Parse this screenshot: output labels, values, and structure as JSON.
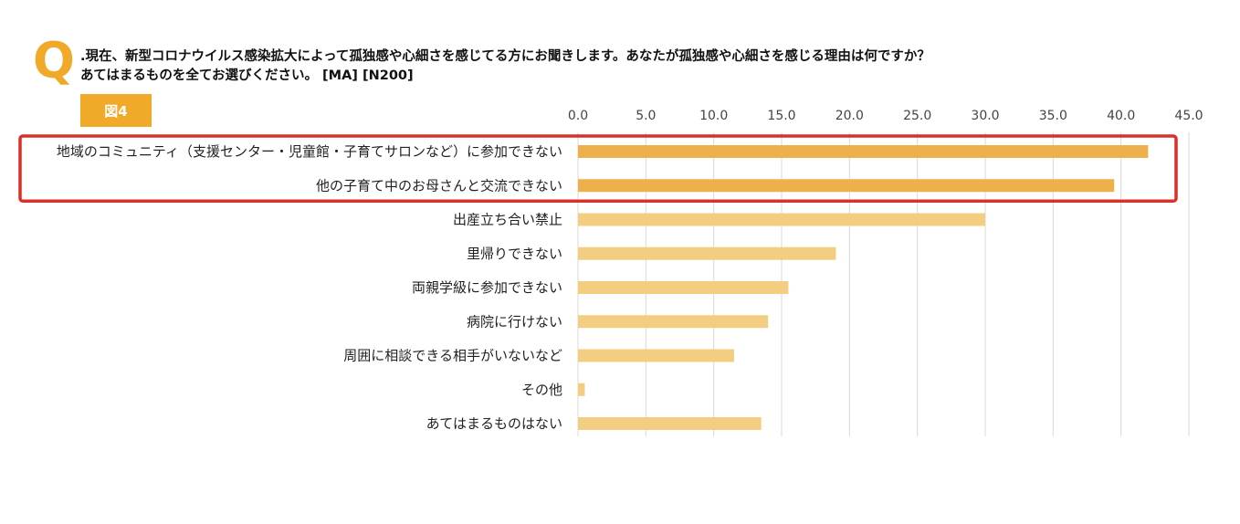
{
  "header": {
    "q_mark": "Q",
    "question_line1": ".現在、新型コロナウイルス感染拡大によって孤独感や心細さを感じてる方にお聞きします。あなたが孤独感や心細さを感じる理由は何ですか？",
    "question_line2": "あてはまるものを全てお選びください。 [MA] [N200]",
    "figure_label": "図4"
  },
  "colors": {
    "accent": "#f0a928",
    "bar_highlight": "#edb04a",
    "bar_normal": "#f3cd80",
    "highlight_box": "#d9302a",
    "grid": "#d9d9d9"
  },
  "chart_data": {
    "type": "bar",
    "orientation": "horizontal",
    "categories": [
      "地域のコミュニティ（支援センター・児童館・子育てサロンなど）に参加できない",
      "他の子育て中のお母さんと交流できない",
      "出産立ち合い禁止",
      "里帰りできない",
      "両親学級に参加できない",
      "病院に行けない",
      "周囲に相談できる相手がいないなど",
      "その他",
      "あてはまるものはない"
    ],
    "values": [
      42.0,
      39.5,
      30.0,
      19.0,
      15.5,
      14.0,
      11.5,
      0.5,
      13.5
    ],
    "highlighted": [
      0,
      1
    ],
    "xlim": [
      0,
      45
    ],
    "ticks": [
      "0.0",
      "5.0",
      "10.0",
      "15.0",
      "20.0",
      "25.0",
      "30.0",
      "35.0",
      "40.0",
      "45.0"
    ],
    "tick_values": [
      0,
      5,
      10,
      15,
      20,
      25,
      30,
      35,
      40,
      45
    ],
    "grid": true,
    "axis_position": "top",
    "legend": "none"
  }
}
